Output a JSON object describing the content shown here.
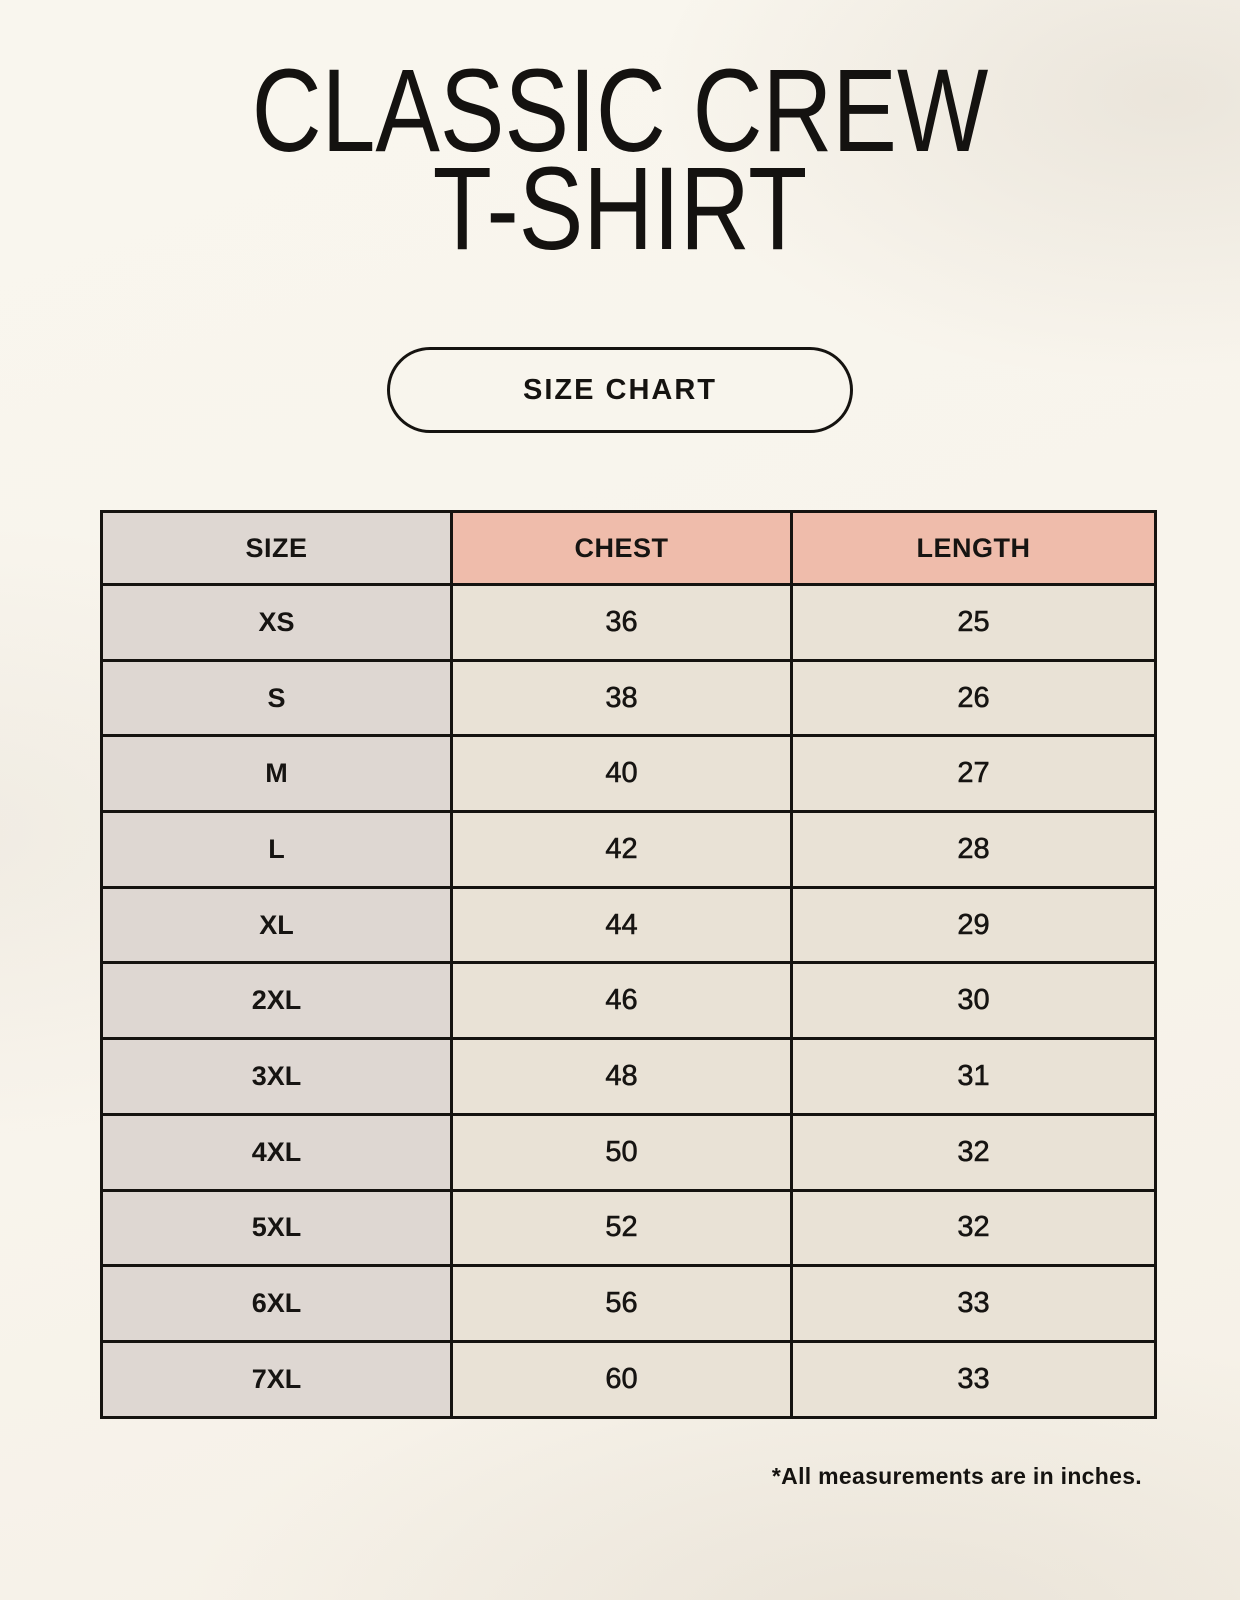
{
  "header": {
    "title_line1": "CLASSIC CREW",
    "title_line2": "T-SHIRT",
    "button_label": "SIZE CHART"
  },
  "footnote": "*All measurements are in inches.",
  "colors": {
    "page_background": "#f8f4ec",
    "size_column_bg": "#ded7d2",
    "measure_header_bg": "#efbcab",
    "value_cell_bg": "#e9e2d6",
    "border": "#151310",
    "text": "#161412"
  },
  "chart_data": {
    "type": "table",
    "title": "CLASSIC CREW T-SHIRT — SIZE CHART",
    "columns": [
      "SIZE",
      "CHEST",
      "LENGTH"
    ],
    "units": "inches",
    "rows": [
      {
        "size": "XS",
        "chest": 36,
        "length": 25
      },
      {
        "size": "S",
        "chest": 38,
        "length": 26
      },
      {
        "size": "M",
        "chest": 40,
        "length": 27
      },
      {
        "size": "L",
        "chest": 42,
        "length": 28
      },
      {
        "size": "XL",
        "chest": 44,
        "length": 29
      },
      {
        "size": "2XL",
        "chest": 46,
        "length": 30
      },
      {
        "size": "3XL",
        "chest": 48,
        "length": 31
      },
      {
        "size": "4XL",
        "chest": 50,
        "length": 32
      },
      {
        "size": "5XL",
        "chest": 52,
        "length": 32
      },
      {
        "size": "6XL",
        "chest": 56,
        "length": 33
      },
      {
        "size": "7XL",
        "chest": 60,
        "length": 33
      }
    ]
  }
}
